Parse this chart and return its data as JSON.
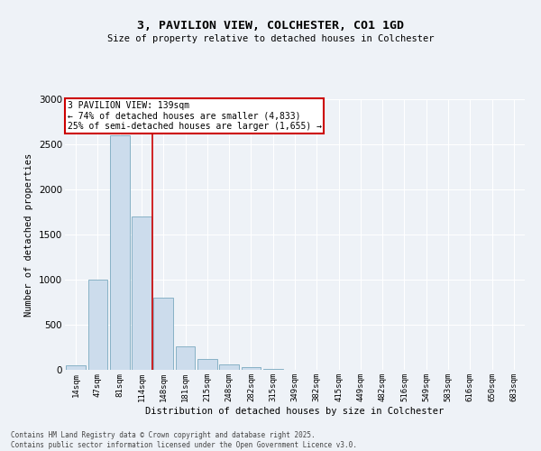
{
  "title1": "3, PAVILION VIEW, COLCHESTER, CO1 1GD",
  "title2": "Size of property relative to detached houses in Colchester",
  "xlabel": "Distribution of detached houses by size in Colchester",
  "ylabel": "Number of detached properties",
  "categories": [
    "14sqm",
    "47sqm",
    "81sqm",
    "114sqm",
    "148sqm",
    "181sqm",
    "215sqm",
    "248sqm",
    "282sqm",
    "315sqm",
    "349sqm",
    "382sqm",
    "415sqm",
    "449sqm",
    "482sqm",
    "516sqm",
    "549sqm",
    "583sqm",
    "616sqm",
    "650sqm",
    "683sqm"
  ],
  "values": [
    55,
    1000,
    2600,
    1700,
    800,
    260,
    120,
    60,
    30,
    10,
    5,
    0,
    0,
    0,
    0,
    0,
    0,
    0,
    0,
    0,
    0
  ],
  "bar_color": "#ccdcec",
  "bar_edge_color": "#7aaabf",
  "vline_pos": 3.5,
  "vline_color": "#cc0000",
  "annotation_text": "3 PAVILION VIEW: 139sqm\n← 74% of detached houses are smaller (4,833)\n25% of semi-detached houses are larger (1,655) →",
  "annotation_box_color": "#ffffff",
  "annotation_box_edge": "#cc0000",
  "ylim": [
    0,
    3000
  ],
  "yticks": [
    0,
    500,
    1000,
    1500,
    2000,
    2500,
    3000
  ],
  "background_color": "#eef2f7",
  "grid_color": "#ffffff",
  "footer_line1": "Contains HM Land Registry data © Crown copyright and database right 2025.",
  "footer_line2": "Contains public sector information licensed under the Open Government Licence v3.0."
}
